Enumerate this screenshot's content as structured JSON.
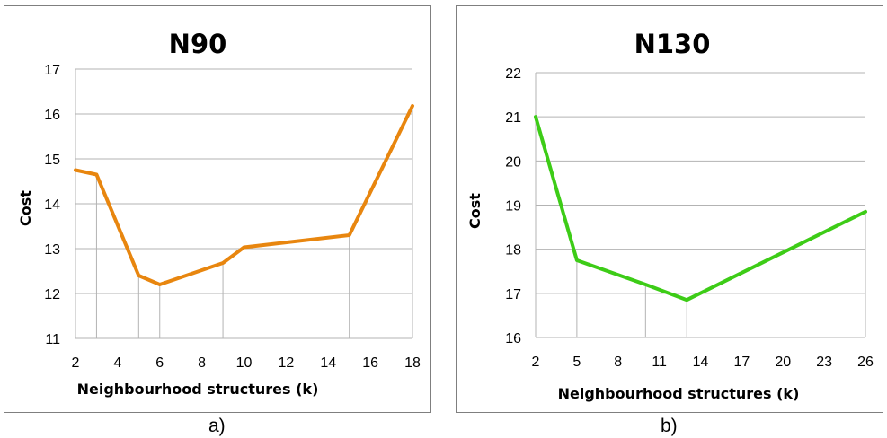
{
  "captions": {
    "a": "a)",
    "b": "b)"
  },
  "chart_data": [
    {
      "type": "line",
      "title": "N90",
      "xlabel": "Neighbourhood structures (k)",
      "ylabel": "Cost",
      "x": [
        2,
        3,
        5,
        6,
        9,
        10,
        15,
        18
      ],
      "series": [
        {
          "values": [
            14.75,
            14.65,
            12.4,
            12.2,
            12.68,
            13.03,
            13.3,
            16.18
          ],
          "color": "#e8860f"
        }
      ],
      "xticks": [
        2,
        4,
        6,
        8,
        10,
        12,
        14,
        16,
        18
      ],
      "xlim": [
        2,
        18
      ],
      "ylim": [
        11,
        17
      ],
      "yticks": [
        11,
        12,
        13,
        14,
        15,
        16,
        17
      ],
      "grid": true,
      "legend": "none"
    },
    {
      "type": "line",
      "title": "N130",
      "xlabel": "Neighbourhood structures (k)",
      "ylabel": "Cost",
      "x": [
        2,
        5,
        10,
        13,
        26
      ],
      "series": [
        {
          "values": [
            21.0,
            17.75,
            17.2,
            16.85,
            18.85
          ],
          "color": "#3dcc17"
        }
      ],
      "xticks": [
        2,
        5,
        8,
        11,
        14,
        17,
        20,
        23,
        26
      ],
      "xlim": [
        2,
        26
      ],
      "ylim": [
        16,
        22
      ],
      "yticks": [
        16,
        17,
        18,
        19,
        20,
        21,
        22
      ],
      "grid": true,
      "legend": "none"
    }
  ]
}
